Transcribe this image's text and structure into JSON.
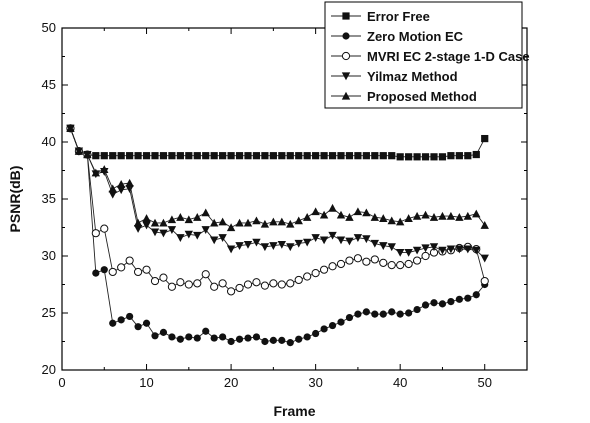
{
  "chart_data": {
    "type": "line",
    "xlabel": "Frame",
    "ylabel": "PSNR(dB)",
    "xlim": [
      0,
      55
    ],
    "ylim": [
      20,
      50
    ],
    "xticks": [
      0,
      10,
      20,
      30,
      40,
      50
    ],
    "yticks": [
      20,
      25,
      30,
      35,
      40,
      45,
      50
    ],
    "grid": false,
    "legend_position": "top-right",
    "series": [
      {
        "name": "Error Free",
        "marker": "square-filled",
        "x": [
          1,
          2,
          3,
          4,
          5,
          6,
          7,
          8,
          9,
          10,
          11,
          12,
          13,
          14,
          15,
          16,
          17,
          18,
          19,
          20,
          21,
          22,
          23,
          24,
          25,
          26,
          27,
          28,
          29,
          30,
          31,
          32,
          33,
          34,
          35,
          36,
          37,
          38,
          39,
          40,
          41,
          42,
          43,
          44,
          45,
          46,
          47,
          48,
          49,
          50
        ],
        "y": [
          41.2,
          39.2,
          38.9,
          38.8,
          38.8,
          38.8,
          38.8,
          38.8,
          38.8,
          38.8,
          38.8,
          38.8,
          38.8,
          38.8,
          38.8,
          38.8,
          38.8,
          38.8,
          38.8,
          38.8,
          38.8,
          38.8,
          38.8,
          38.8,
          38.8,
          38.8,
          38.8,
          38.8,
          38.8,
          38.8,
          38.8,
          38.8,
          38.8,
          38.8,
          38.8,
          38.8,
          38.8,
          38.8,
          38.8,
          38.7,
          38.7,
          38.7,
          38.7,
          38.7,
          38.7,
          38.8,
          38.8,
          38.8,
          38.9,
          40.3
        ]
      },
      {
        "name": "Zero Motion EC",
        "marker": "circle-filled",
        "x": [
          1,
          2,
          3,
          4,
          5,
          6,
          7,
          8,
          9,
          10,
          11,
          12,
          13,
          14,
          15,
          16,
          17,
          18,
          19,
          20,
          21,
          22,
          23,
          24,
          25,
          26,
          27,
          28,
          29,
          30,
          31,
          32,
          33,
          34,
          35,
          36,
          37,
          38,
          39,
          40,
          41,
          42,
          43,
          44,
          45,
          46,
          47,
          48,
          49,
          50
        ],
        "y": [
          41.2,
          39.2,
          38.9,
          28.5,
          28.8,
          24.1,
          24.4,
          24.7,
          23.8,
          24.1,
          23.0,
          23.3,
          22.9,
          22.7,
          22.9,
          22.8,
          23.4,
          22.8,
          22.9,
          22.5,
          22.7,
          22.8,
          22.9,
          22.5,
          22.6,
          22.6,
          22.4,
          22.7,
          22.9,
          23.2,
          23.6,
          23.9,
          24.2,
          24.6,
          24.9,
          25.1,
          24.9,
          24.9,
          25.1,
          24.9,
          25.0,
          25.3,
          25.7,
          25.9,
          25.8,
          26.0,
          26.2,
          26.3,
          26.6,
          27.5
        ]
      },
      {
        "name": "MVRI EC 2-stage 1-D Case",
        "marker": "circle-open",
        "x": [
          1,
          2,
          3,
          4,
          5,
          6,
          7,
          8,
          9,
          10,
          11,
          12,
          13,
          14,
          15,
          16,
          17,
          18,
          19,
          20,
          21,
          22,
          23,
          24,
          25,
          26,
          27,
          28,
          29,
          30,
          31,
          32,
          33,
          34,
          35,
          36,
          37,
          38,
          39,
          40,
          41,
          42,
          43,
          44,
          45,
          46,
          47,
          48,
          49,
          50
        ],
        "y": [
          41.2,
          39.2,
          38.9,
          32.0,
          32.4,
          28.6,
          29.0,
          29.6,
          28.6,
          28.8,
          27.8,
          28.1,
          27.3,
          27.7,
          27.5,
          27.6,
          28.4,
          27.3,
          27.6,
          26.9,
          27.2,
          27.5,
          27.7,
          27.4,
          27.6,
          27.5,
          27.6,
          27.9,
          28.2,
          28.5,
          28.8,
          29.1,
          29.3,
          29.6,
          29.8,
          29.5,
          29.7,
          29.4,
          29.2,
          29.2,
          29.3,
          29.6,
          30.0,
          30.3,
          30.4,
          30.5,
          30.7,
          30.8,
          30.6,
          27.8
        ]
      },
      {
        "name": "Yilmaz Method",
        "marker": "triangle-down-filled",
        "x": [
          1,
          2,
          3,
          4,
          5,
          6,
          7,
          8,
          9,
          10,
          11,
          12,
          13,
          14,
          15,
          16,
          17,
          18,
          19,
          20,
          21,
          22,
          23,
          24,
          25,
          26,
          27,
          28,
          29,
          30,
          31,
          32,
          33,
          34,
          35,
          36,
          37,
          38,
          39,
          40,
          41,
          42,
          43,
          44,
          45,
          46,
          47,
          48,
          49,
          50
        ],
        "y": [
          41.2,
          39.2,
          38.9,
          37.2,
          37.4,
          35.4,
          35.8,
          35.9,
          32.4,
          32.7,
          32.1,
          32.0,
          32.3,
          31.6,
          31.9,
          31.8,
          32.3,
          31.4,
          31.6,
          30.6,
          30.9,
          31.0,
          31.2,
          30.8,
          30.9,
          31.0,
          30.8,
          31.1,
          31.2,
          31.6,
          31.4,
          31.8,
          31.4,
          31.3,
          31.6,
          31.5,
          31.1,
          30.9,
          30.8,
          30.3,
          30.3,
          30.5,
          30.7,
          30.8,
          30.5,
          30.6,
          30.6,
          30.6,
          30.5,
          29.8
        ]
      },
      {
        "name": "Proposed Method",
        "marker": "triangle-up-filled",
        "x": [
          1,
          2,
          3,
          4,
          5,
          6,
          7,
          8,
          9,
          10,
          11,
          12,
          13,
          14,
          15,
          16,
          17,
          18,
          19,
          20,
          21,
          22,
          23,
          24,
          25,
          26,
          27,
          28,
          29,
          30,
          31,
          32,
          33,
          34,
          35,
          36,
          37,
          38,
          39,
          40,
          41,
          42,
          43,
          44,
          45,
          46,
          47,
          48,
          49,
          50
        ],
        "y": [
          41.2,
          39.2,
          38.9,
          37.3,
          37.6,
          35.9,
          36.3,
          36.4,
          32.9,
          33.3,
          32.9,
          32.9,
          33.2,
          33.4,
          33.2,
          33.4,
          33.8,
          32.9,
          33.0,
          32.5,
          32.9,
          32.9,
          33.1,
          32.8,
          33.0,
          33.0,
          32.8,
          33.1,
          33.4,
          33.9,
          33.6,
          34.2,
          33.6,
          33.4,
          33.9,
          33.8,
          33.4,
          33.3,
          33.1,
          33.0,
          33.3,
          33.5,
          33.6,
          33.4,
          33.5,
          33.5,
          33.4,
          33.5,
          33.7,
          32.7
        ]
      }
    ]
  }
}
